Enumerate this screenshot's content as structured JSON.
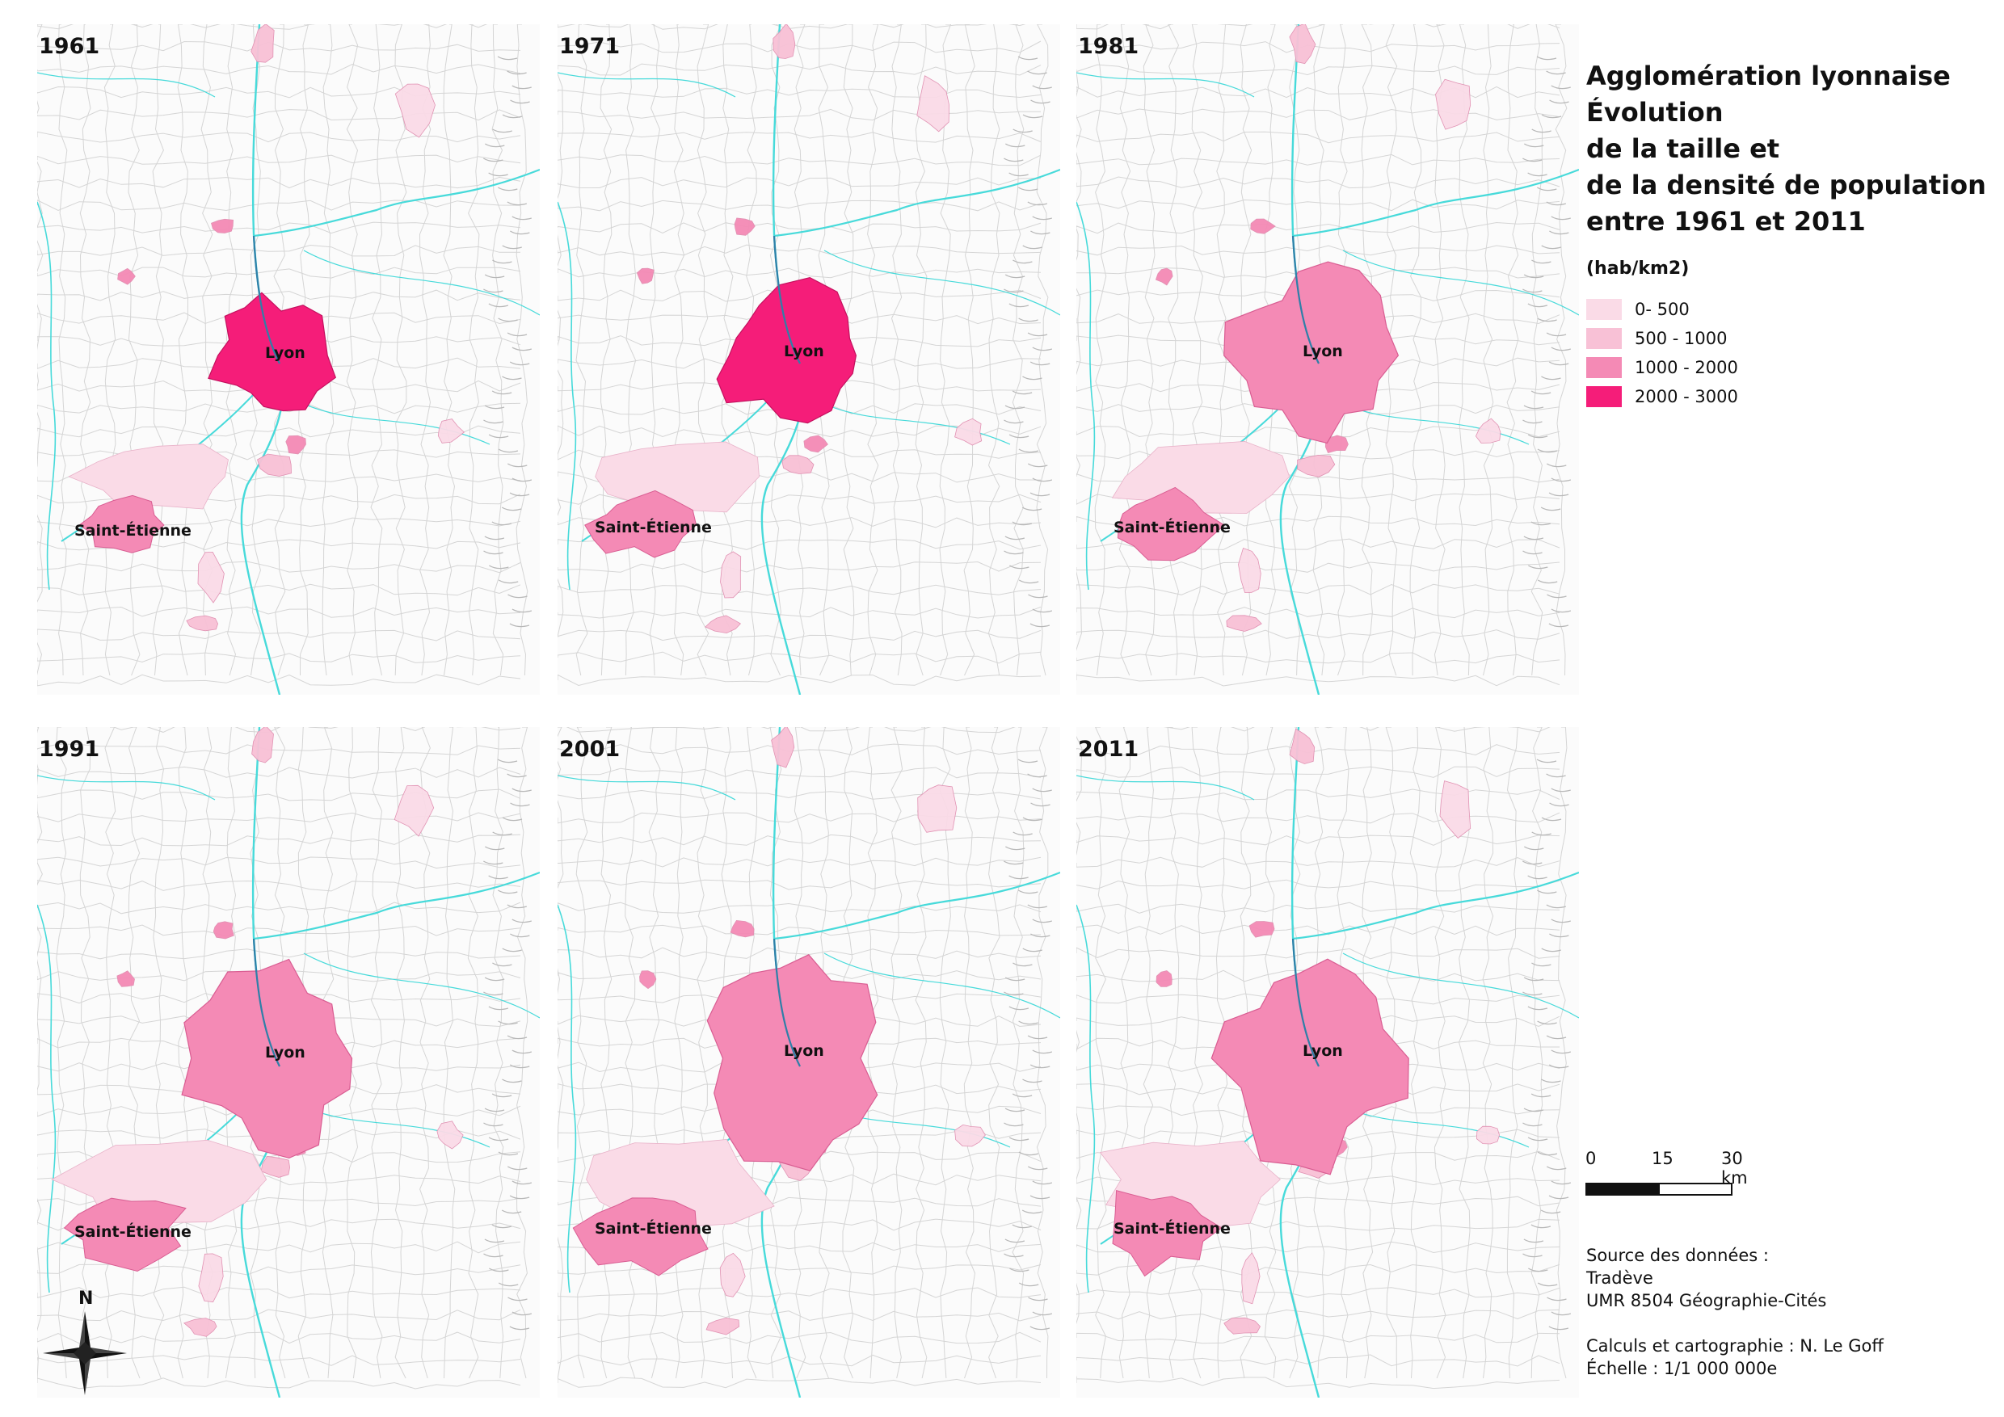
{
  "title_lines": [
    "Agglomération lyonnaise",
    "Évolution",
    "de la taille et",
    "de la densité de population",
    "entre 1961 et 2011"
  ],
  "legend": {
    "unit": "(hab/km2)",
    "classes": [
      {
        "label": "0- 500",
        "color": "#fadbe7"
      },
      {
        "label": "500 - 1000",
        "color": "#f8c1d6"
      },
      {
        "label": "1000 - 2000",
        "color": "#f48ab5"
      },
      {
        "label": "2000 - 3000",
        "color": "#f51d79"
      }
    ]
  },
  "scale": {
    "labels": [
      "0",
      "15",
      "30 km"
    ]
  },
  "source": {
    "heading": "Source des données :",
    "lines": [
      "Tradève",
      "UMR 8504 Géographie-Cités",
      "",
      "Calculs et cartographie : N. Le Goff",
      "Échelle : 1/1 000 000e"
    ]
  },
  "north": "N",
  "colors": {
    "water": "#47dada",
    "boundary": "#d5d5d5",
    "relief": "#b8b8b8"
  },
  "panels": [
    {
      "year": "1961",
      "lyon": "Lyon",
      "saint_etienne": "Saint-Étienne",
      "lyon_class": 3
    },
    {
      "year": "1971",
      "lyon": "Lyon",
      "saint_etienne": "Saint-Étienne",
      "lyon_class": 3
    },
    {
      "year": "1981",
      "lyon": "Lyon",
      "saint_etienne": "Saint-Étienne",
      "lyon_class": 2
    },
    {
      "year": "1991",
      "lyon": "Lyon",
      "saint_etienne": "Saint-Étienne",
      "lyon_class": 2
    },
    {
      "year": "2001",
      "lyon": "Lyon",
      "saint_etienne": "Saint-Étienne",
      "lyon_class": 2
    },
    {
      "year": "2011",
      "lyon": "Lyon",
      "saint_etienne": "Saint-Étienne",
      "lyon_class": 2
    }
  ]
}
